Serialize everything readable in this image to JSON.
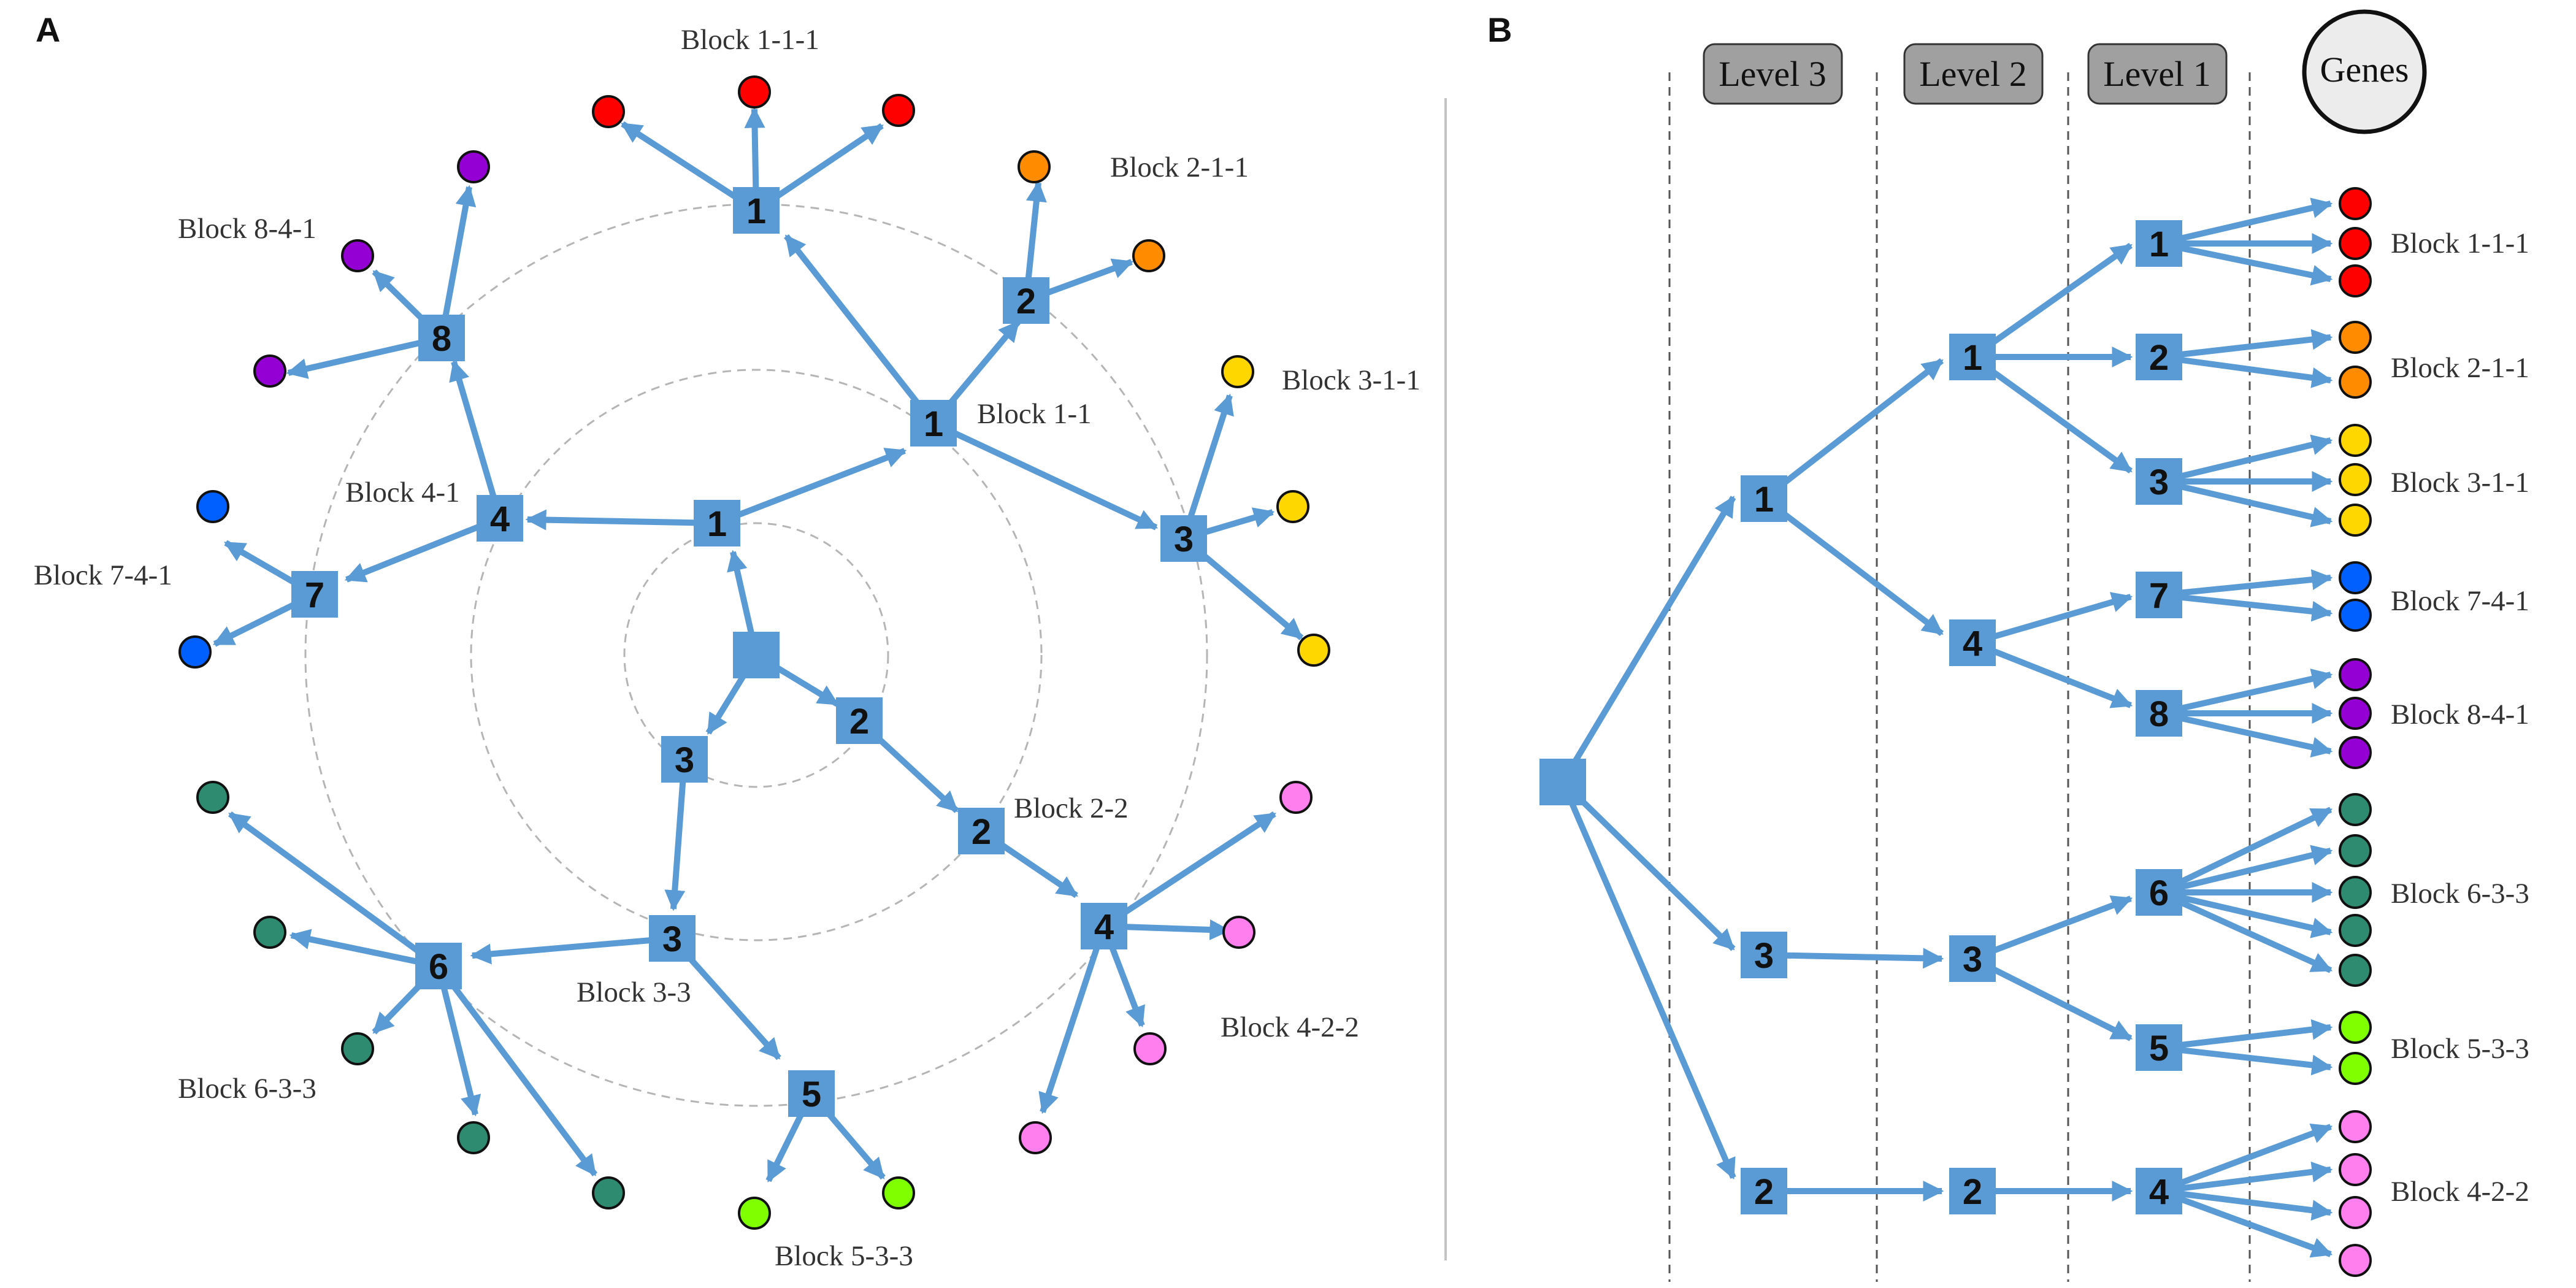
{
  "panel_a": {
    "letter": "A",
    "node_numbers": {
      "l3_1": "1",
      "l3_2": "2",
      "l3_3": "3",
      "l2_1": "1",
      "l2_4": "4",
      "l2_2": "2",
      "l2_3": "3",
      "l1_1": "1",
      "l1_2": "2",
      "l1_3": "3",
      "l1_8": "8",
      "l1_7": "7",
      "l1_4": "4",
      "l1_6": "6",
      "l1_5": "5"
    },
    "labels": {
      "b111": "Block 1-1-1",
      "b211": "Block 2-1-1",
      "b311": "Block 3-1-1",
      "b841": "Block 8-4-1",
      "b741": "Block 7-4-1",
      "b11": "Block 1-1",
      "b41": "Block 4-1",
      "b22": "Block 2-2",
      "b33": "Block 3-3",
      "b633": "Block 6-3-3",
      "b422": "Block 4-2-2",
      "b533": "Block 5-3-3"
    }
  },
  "panel_b": {
    "letter": "B",
    "headers": {
      "level3": "Level 3",
      "level2": "Level 2",
      "level1": "Level 1",
      "genes": "Genes"
    },
    "node_numbers": {
      "l3_1": "1",
      "l3_3": "3",
      "l3_2": "2",
      "l2_1": "1",
      "l2_4": "4",
      "l2_3": "3",
      "l2_2": "2",
      "l1_1": "1",
      "l1_2": "2",
      "l1_3": "3",
      "l1_7": "7",
      "l1_8": "8",
      "l1_6": "6",
      "l1_5": "5",
      "l1_4": "4"
    },
    "labels": {
      "b111": "Block 1-1-1",
      "b211": "Block 2-1-1",
      "b311": "Block 3-1-1",
      "b741": "Block 7-4-1",
      "b841": "Block 8-4-1",
      "b633": "Block 6-3-3",
      "b533": "Block 5-3-3",
      "b422": "Block 4-2-2"
    }
  },
  "colors": {
    "node_blue": "#5b9bd5",
    "block_1_1_1": "#ff0000",
    "block_2_1_1": "#ff8c00",
    "block_3_1_1": "#ffd700",
    "block_7_4_1": "#0060ff",
    "block_8_4_1": "#9400d3",
    "block_6_3_3": "#2e8b6f",
    "block_5_3_3": "#7fff00",
    "block_4_2_2": "#ff7fee"
  }
}
